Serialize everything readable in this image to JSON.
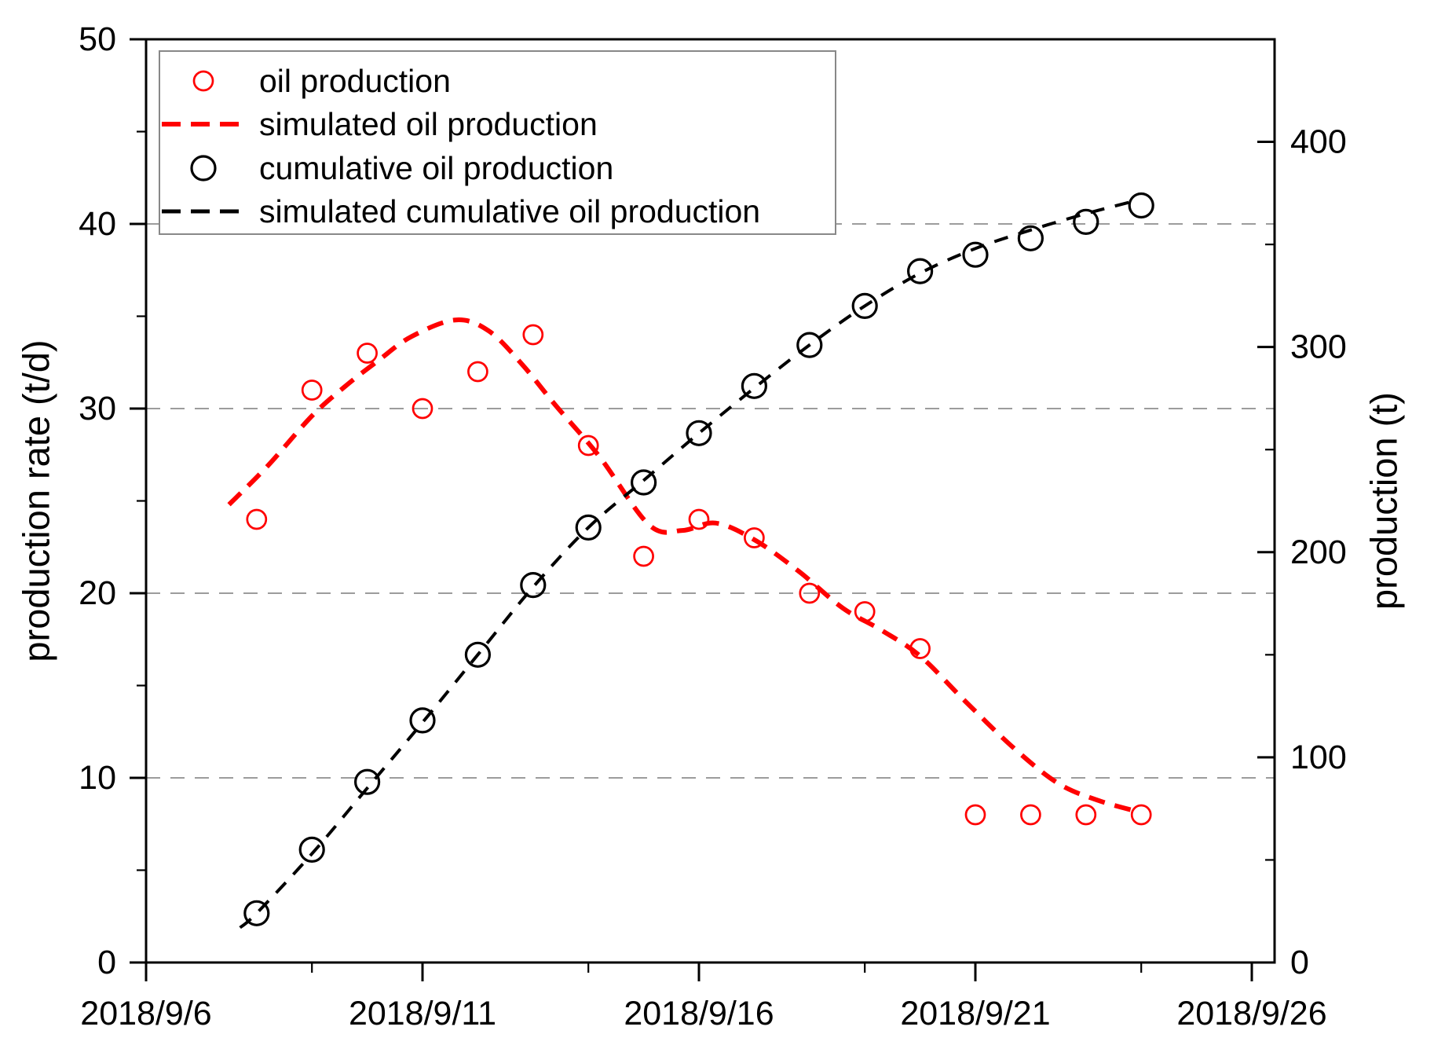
{
  "chart_data": {
    "type": "line",
    "title": "",
    "x_axis": {
      "start_date": "2018/9/6",
      "tick_labels": [
        "2018/9/6",
        "2018/9/11",
        "2018/9/16",
        "2018/9/21",
        "2018/9/26"
      ],
      "major_tick_days": [
        0,
        5,
        10,
        15,
        20
      ],
      "minor_tick_days": [
        3,
        8,
        13,
        18
      ],
      "domain_days": [
        0,
        20.41
      ]
    },
    "y_left_axis": {
      "label": "production rate (t/d)",
      "range": [
        0,
        50
      ],
      "major_ticks": [
        0,
        10,
        20,
        30,
        40,
        50
      ],
      "minor_ticks": [
        5,
        15,
        25,
        35,
        45
      ],
      "gridline_values": [
        10,
        20,
        30,
        40
      ],
      "grid_on": true
    },
    "y_right_axis": {
      "label": "production (t)",
      "range": [
        0,
        450
      ],
      "major_ticks": [
        0,
        100,
        200,
        300,
        400
      ],
      "minor_ticks": [
        50,
        150,
        250,
        350
      ]
    },
    "legend": {
      "position": "top-left",
      "entries": [
        {
          "label": "oil production",
          "marker": "circle-open",
          "color": "#ff0000"
        },
        {
          "label": "simulated oil production",
          "marker": "dashed-line",
          "color": "#ff0000"
        },
        {
          "label": "cumulative oil production",
          "marker": "circle-open",
          "color": "#000000"
        },
        {
          "label": "simulated cumulative oil production",
          "marker": "dashed-line",
          "color": "#000000"
        }
      ]
    },
    "series": [
      {
        "name": "oil production",
        "type": "scatter",
        "axis": "left",
        "color": "#ff0000",
        "dates": [
          "2018/9/8",
          "2018/9/9",
          "2018/9/10",
          "2018/9/11",
          "2018/9/12",
          "2018/9/13",
          "2018/9/14",
          "2018/9/15",
          "2018/9/16",
          "2018/9/17",
          "2018/9/18",
          "2018/9/19",
          "2018/9/20",
          "2018/9/21",
          "2018/9/22",
          "2018/9/23",
          "2018/9/24"
        ],
        "days": [
          2,
          3,
          4,
          5,
          6,
          7,
          8,
          9,
          10,
          11,
          12,
          13,
          14,
          15,
          16,
          17,
          18
        ],
        "values": [
          24,
          31,
          33,
          30,
          32,
          34,
          28,
          22,
          24,
          23,
          20,
          19,
          17,
          8,
          8,
          8,
          8
        ]
      },
      {
        "name": "simulated oil production",
        "type": "dashed-line",
        "axis": "left",
        "color": "#ff0000",
        "points": [
          [
            1.5,
            24.8
          ],
          [
            2.2,
            26.9
          ],
          [
            3,
            29.6
          ],
          [
            3.6,
            31.2
          ],
          [
            4.2,
            32.6
          ],
          [
            4.8,
            33.9
          ],
          [
            5.6,
            34.8
          ],
          [
            6.2,
            34.2
          ],
          [
            6.8,
            32.4
          ],
          [
            7.4,
            30.2
          ],
          [
            8.2,
            27.4
          ],
          [
            9.1,
            23.7
          ],
          [
            9.7,
            23.4
          ],
          [
            10.3,
            23.8
          ],
          [
            11,
            22.9
          ],
          [
            11.8,
            21.2
          ],
          [
            12.6,
            19.2
          ],
          [
            13.3,
            18.0
          ],
          [
            14,
            16.6
          ],
          [
            14.8,
            14.2
          ],
          [
            15.7,
            11.6
          ],
          [
            16.5,
            9.7
          ],
          [
            17.2,
            8.8
          ],
          [
            17.9,
            8.2
          ]
        ]
      },
      {
        "name": "cumulative oil production",
        "type": "scatter",
        "axis": "right",
        "color": "#000000",
        "dates": [
          "2018/9/8",
          "2018/9/9",
          "2018/9/10",
          "2018/9/11",
          "2018/9/12",
          "2018/9/13",
          "2018/9/14",
          "2018/9/15",
          "2018/9/16",
          "2018/9/17",
          "2018/9/18",
          "2018/9/19",
          "2018/9/20",
          "2018/9/21",
          "2018/9/22",
          "2018/9/23",
          "2018/9/24"
        ],
        "days": [
          2,
          3,
          4,
          5,
          6,
          7,
          8,
          9,
          10,
          11,
          12,
          13,
          14,
          15,
          16,
          17,
          18
        ],
        "values": [
          24,
          55,
          88,
          118,
          150,
          184,
          212,
          234,
          258,
          281,
          301,
          320,
          337,
          345,
          353,
          361,
          369
        ]
      },
      {
        "name": "simulated cumulative oil production",
        "type": "dashed-line",
        "axis": "right",
        "color": "#000000",
        "points": [
          [
            1.7,
            17
          ],
          [
            2,
            24
          ],
          [
            3,
            53
          ],
          [
            4,
            85
          ],
          [
            5,
            117
          ],
          [
            6,
            150
          ],
          [
            7,
            183
          ],
          [
            8,
            212
          ],
          [
            9,
            235
          ],
          [
            10,
            258
          ],
          [
            11,
            280
          ],
          [
            12,
            301
          ],
          [
            13,
            320
          ],
          [
            14,
            336
          ],
          [
            15,
            348
          ],
          [
            16,
            357
          ],
          [
            17,
            365
          ],
          [
            17.85,
            371
          ]
        ]
      }
    ],
    "colors": {
      "grid": "#9c9c9c",
      "axis": "#000000",
      "background": "#ffffff",
      "legend_border": "#888888",
      "red_series": "#ff0000",
      "black_series": "#000000"
    }
  }
}
